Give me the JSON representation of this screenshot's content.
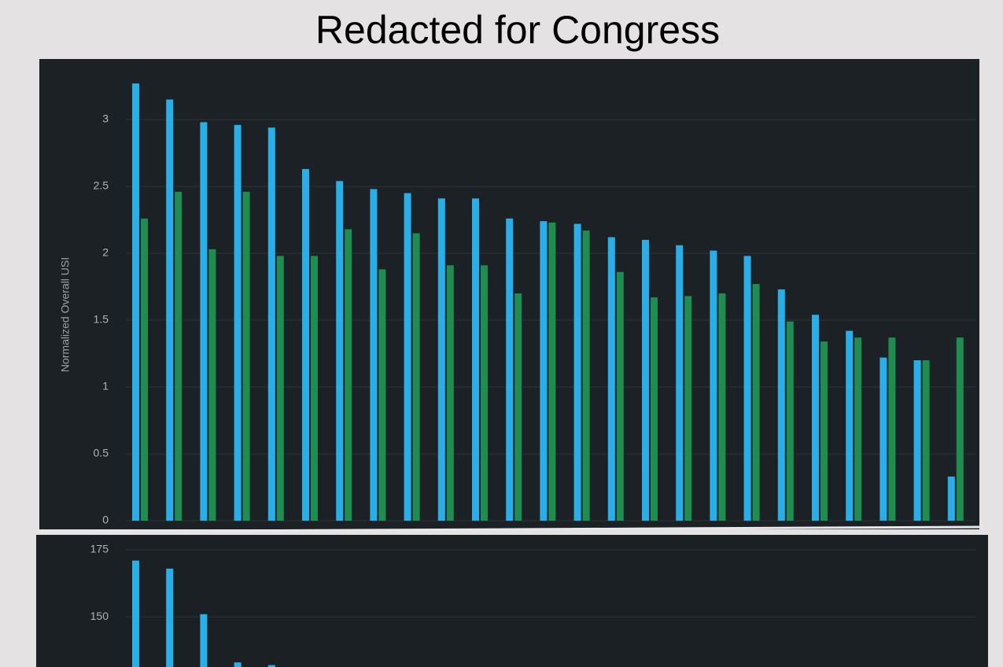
{
  "chart_data": [
    {
      "type": "bar",
      "title": "Redacted for Congress",
      "y_label": "Normalized Overall USI",
      "categories": [
        null,
        null,
        null,
        null,
        null,
        null,
        null,
        null,
        null,
        null,
        null,
        null,
        null,
        null,
        null,
        null,
        null,
        null,
        null,
        null,
        null,
        null,
        null,
        null,
        null
      ],
      "series": [
        {
          "color": "#2aaee8",
          "values": [
            3.27,
            3.15,
            2.98,
            2.96,
            2.94,
            2.63,
            2.54,
            2.48,
            2.45,
            2.41,
            2.41,
            2.26,
            2.24,
            2.22,
            2.12,
            2.1,
            2.06,
            2.02,
            1.98,
            1.73,
            1.54,
            1.42,
            1.22,
            1.2,
            0.33
          ]
        },
        {
          "color": "#1f8c50",
          "values": [
            2.26,
            2.46,
            2.03,
            2.46,
            1.98,
            1.98,
            2.18,
            1.88,
            2.15,
            1.91,
            1.91,
            1.7,
            2.23,
            2.17,
            1.86,
            1.67,
            1.68,
            1.7,
            1.77,
            1.49,
            1.34,
            1.37,
            1.37,
            1.2,
            1.37
          ]
        }
      ],
      "ylim": [
        0,
        3.3
      ],
      "yticks": [
        0,
        0.5,
        1,
        1.5,
        2,
        2.5,
        3
      ],
      "grid": true
    },
    {
      "type": "bar",
      "categories": [
        null,
        null,
        null,
        null,
        null
      ],
      "series": [
        {
          "color": "#2aaee8",
          "values": [
            171,
            168,
            151,
            133,
            132
          ]
        }
      ],
      "ylim": [
        126,
        180
      ],
      "yticks": [
        150,
        175
      ],
      "grid": true
    }
  ]
}
